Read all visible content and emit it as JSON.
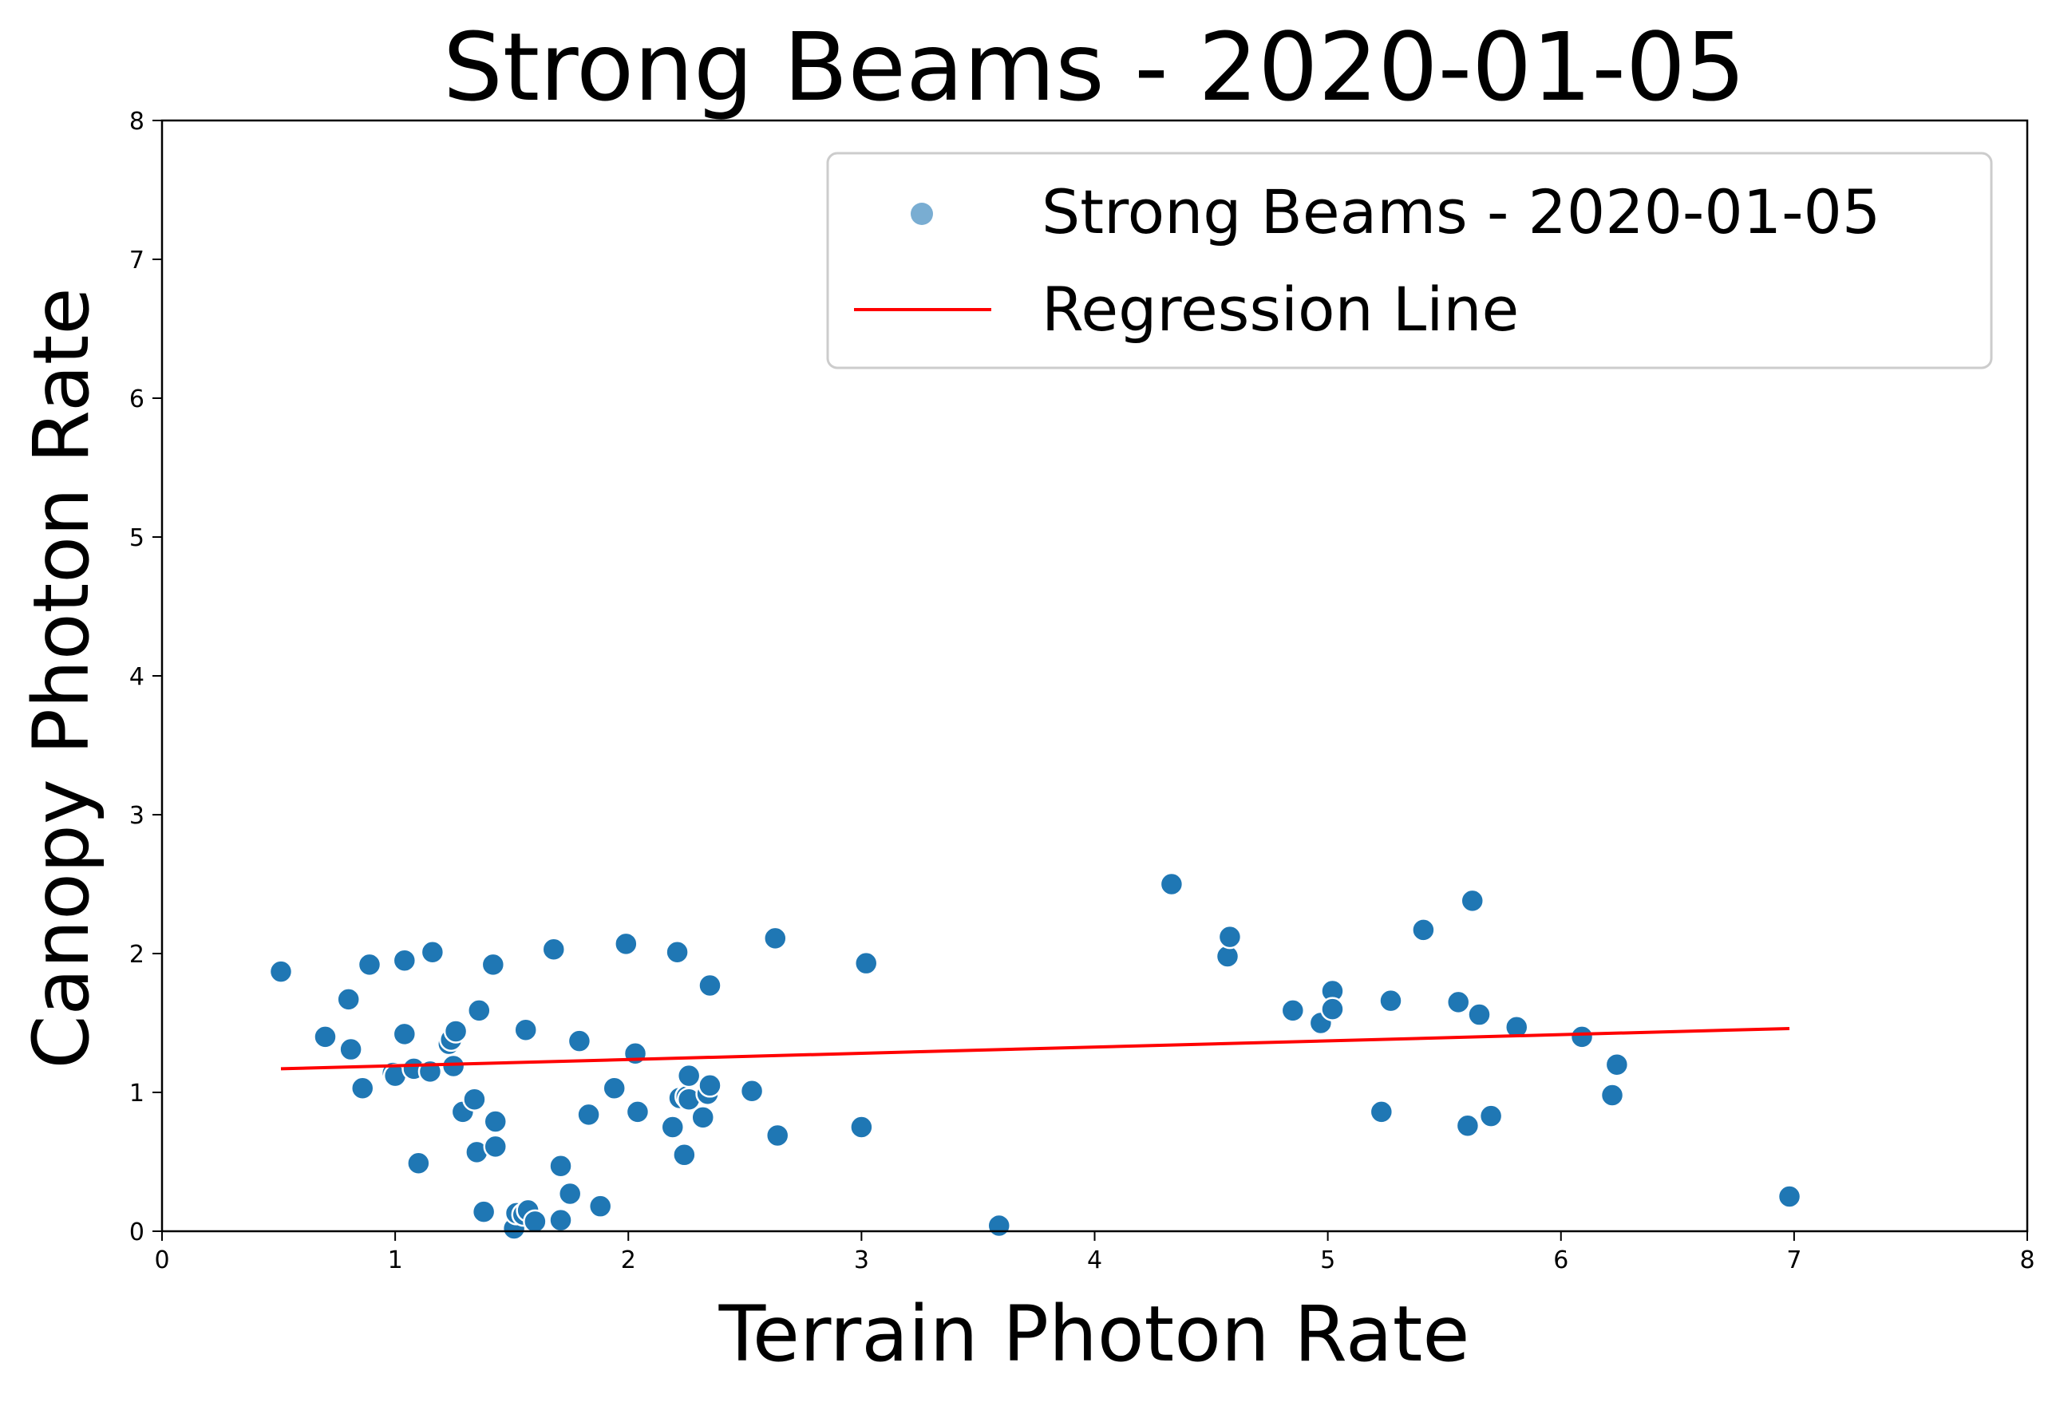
{
  "chart_data": {
    "type": "scatter",
    "title": "Strong Beams - 2020-01-05",
    "xlabel": "Terrain Photon Rate",
    "ylabel": "Canopy Photon Rate",
    "xlim": [
      0,
      8
    ],
    "ylim": [
      0,
      8
    ],
    "xticks": [
      "0",
      "1",
      "2",
      "3",
      "4",
      "5",
      "6",
      "7",
      "8"
    ],
    "yticks": [
      "0",
      "1",
      "2",
      "3",
      "4",
      "5",
      "6",
      "7",
      "8"
    ],
    "grid": false,
    "legend_position": "top-right",
    "colors": {
      "points": "#1f77b4",
      "point_edge": "#ffffff",
      "regression": "#ff0000"
    },
    "series": [
      {
        "name": "Strong Beams - 2020-01-05",
        "kind": "scatter",
        "points": [
          [
            0.51,
            1.87
          ],
          [
            0.7,
            1.4
          ],
          [
            0.8,
            1.67
          ],
          [
            0.81,
            1.31
          ],
          [
            0.86,
            1.03
          ],
          [
            0.89,
            1.92
          ],
          [
            0.99,
            1.14
          ],
          [
            1.0,
            1.12
          ],
          [
            1.04,
            1.95
          ],
          [
            1.04,
            1.42
          ],
          [
            1.08,
            1.17
          ],
          [
            1.1,
            0.49
          ],
          [
            1.15,
            1.15
          ],
          [
            1.16,
            2.01
          ],
          [
            1.23,
            1.35
          ],
          [
            1.24,
            1.38
          ],
          [
            1.25,
            1.19
          ],
          [
            1.26,
            1.44
          ],
          [
            1.29,
            0.86
          ],
          [
            1.34,
            0.95
          ],
          [
            1.35,
            0.57
          ],
          [
            1.36,
            1.59
          ],
          [
            1.38,
            0.14
          ],
          [
            1.42,
            1.92
          ],
          [
            1.43,
            0.79
          ],
          [
            1.43,
            0.61
          ],
          [
            1.51,
            0.02
          ],
          [
            1.52,
            0.13
          ],
          [
            1.55,
            0.12
          ],
          [
            1.56,
            1.45
          ],
          [
            1.57,
            0.15
          ],
          [
            1.6,
            0.07
          ],
          [
            1.68,
            2.03
          ],
          [
            1.71,
            0.47
          ],
          [
            1.71,
            0.08
          ],
          [
            1.75,
            0.27
          ],
          [
            1.79,
            1.37
          ],
          [
            1.83,
            0.84
          ],
          [
            1.88,
            0.18
          ],
          [
            1.94,
            1.03
          ],
          [
            1.99,
            2.07
          ],
          [
            2.03,
            1.28
          ],
          [
            2.04,
            0.86
          ],
          [
            2.19,
            0.75
          ],
          [
            2.21,
            2.01
          ],
          [
            2.22,
            0.96
          ],
          [
            2.24,
            0.55
          ],
          [
            2.25,
            0.97
          ],
          [
            2.26,
            1.12
          ],
          [
            2.26,
            0.95
          ],
          [
            2.32,
            0.82
          ],
          [
            2.34,
            0.99
          ],
          [
            2.35,
            1.05
          ],
          [
            2.35,
            1.77
          ],
          [
            2.53,
            1.01
          ],
          [
            2.63,
            2.11
          ],
          [
            2.64,
            0.69
          ],
          [
            3.0,
            0.75
          ],
          [
            3.02,
            1.93
          ],
          [
            3.59,
            0.04
          ],
          [
            4.33,
            2.5
          ],
          [
            4.57,
            1.98
          ],
          [
            4.58,
            2.12
          ],
          [
            4.85,
            1.59
          ],
          [
            4.97,
            1.5
          ],
          [
            5.02,
            1.73
          ],
          [
            5.02,
            1.6
          ],
          [
            5.23,
            0.86
          ],
          [
            5.27,
            1.66
          ],
          [
            5.41,
            2.17
          ],
          [
            5.56,
            1.65
          ],
          [
            5.6,
            0.76
          ],
          [
            5.62,
            2.38
          ],
          [
            5.65,
            1.56
          ],
          [
            5.7,
            0.83
          ],
          [
            5.81,
            1.47
          ],
          [
            6.09,
            1.4
          ],
          [
            6.22,
            0.98
          ],
          [
            6.24,
            1.2
          ],
          [
            6.98,
            0.25
          ]
        ]
      },
      {
        "name": "Regression Line",
        "kind": "line",
        "points": [
          [
            0.51,
            1.17
          ],
          [
            6.98,
            1.46
          ]
        ]
      }
    ]
  }
}
